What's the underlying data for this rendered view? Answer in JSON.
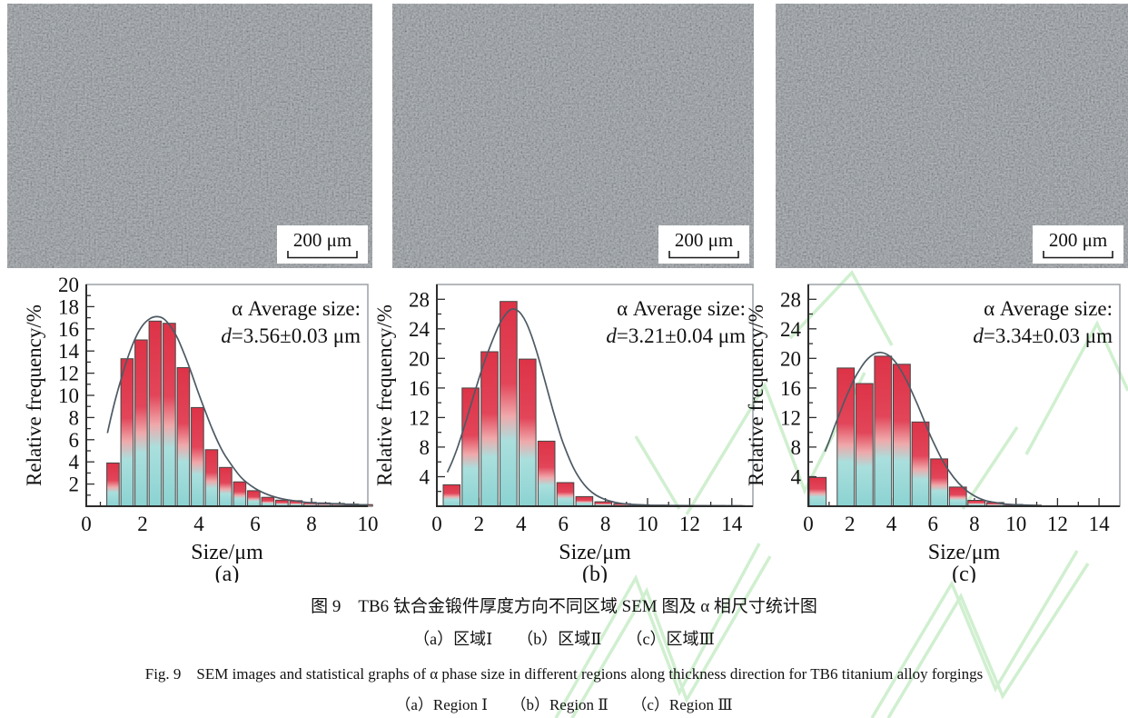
{
  "figure": {
    "sem_panels": [
      {
        "scale_label": "200 μm"
      },
      {
        "scale_label": "200 μm"
      },
      {
        "scale_label": "200 μm"
      }
    ],
    "captions": {
      "zh_title": "图 9　TB6 钛合金锻件厚度方向不同区域 SEM 图及 α 相尺寸统计图",
      "zh_sub": "（a）区域Ⅰ　　（b）区域Ⅱ　　（c）区域Ⅲ",
      "en_title": "Fig. 9　SEM images and statistical graphs of α phase size in different regions along thickness direction for TB6 titanium alloy forgings",
      "en_sub": "（a）Region Ⅰ　　（b）Region Ⅱ　　（c）Region Ⅲ"
    }
  },
  "colors": {
    "axis": "#2d2d2d",
    "frame": "#9aa0a5",
    "curve": "#4d5a64",
    "bar_stroke": "#454545",
    "watermark": "#c8edc8",
    "sem_base": "#8c9399",
    "bar_stops": [
      [
        "0%",
        "#dd3347"
      ],
      [
        "40%",
        "#e24559"
      ],
      [
        "56%",
        "#efa9ab"
      ],
      [
        "68%",
        "#aadfdd"
      ],
      [
        "100%",
        "#8bd3d2"
      ]
    ]
  },
  "chart_data": [
    {
      "type": "bar",
      "panel_label": "(a)",
      "xlabel": "Size/μm",
      "ylabel": "Relative frequency/%",
      "xlim": [
        0,
        10
      ],
      "ylim": [
        0,
        20
      ],
      "x_ticks": [
        0,
        2,
        4,
        6,
        8,
        10
      ],
      "x_minor_step": 0.5,
      "y_ticks": [
        2,
        4,
        6,
        8,
        10,
        12,
        14,
        16,
        18,
        20
      ],
      "y_minor_step": 1,
      "bar_width": 0.44,
      "bar_centers": [
        0.95,
        1.45,
        1.95,
        2.45,
        2.95,
        3.45,
        3.95,
        4.45,
        4.95,
        5.45,
        5.95,
        6.45,
        6.95,
        7.45,
        7.95,
        8.45,
        8.95,
        9.45,
        9.95
      ],
      "values": [
        3.9,
        13.3,
        15.0,
        16.7,
        16.5,
        12.5,
        8.9,
        5.1,
        3.5,
        2.2,
        1.4,
        0.8,
        0.55,
        0.5,
        0.35,
        0.3,
        0.25,
        0.2,
        0.15
      ],
      "annotation": {
        "line1": "α Average size:",
        "var": "d",
        "value": "=3.56±0.03 μm"
      },
      "curve": [
        [
          0.75,
          6.6
        ],
        [
          1.0,
          9.3
        ],
        [
          1.25,
          11.6
        ],
        [
          1.5,
          13.6
        ],
        [
          1.75,
          15.2
        ],
        [
          2.0,
          16.3
        ],
        [
          2.25,
          16.9
        ],
        [
          2.5,
          17.1
        ],
        [
          2.75,
          16.9
        ],
        [
          3.0,
          16.2
        ],
        [
          3.25,
          15.1
        ],
        [
          3.5,
          13.6
        ],
        [
          3.75,
          11.9
        ],
        [
          4.0,
          10.1
        ],
        [
          4.25,
          8.4
        ],
        [
          4.5,
          6.8
        ],
        [
          4.75,
          5.4
        ],
        [
          5.0,
          4.3
        ],
        [
          5.5,
          2.6
        ],
        [
          6.0,
          1.6
        ],
        [
          6.5,
          1.0
        ],
        [
          7.0,
          0.65
        ],
        [
          7.5,
          0.45
        ],
        [
          8.0,
          0.3
        ],
        [
          8.5,
          0.25
        ],
        [
          9.0,
          0.2
        ],
        [
          9.5,
          0.15
        ],
        [
          10.0,
          0.12
        ]
      ]
    },
    {
      "type": "bar",
      "panel_label": "(b)",
      "xlabel": "Size/μm",
      "ylabel": "Relative frequency/%",
      "xlim": [
        0,
        15
      ],
      "ylim": [
        0,
        30
      ],
      "x_ticks": [
        0,
        2,
        4,
        6,
        8,
        10,
        12,
        14
      ],
      "x_minor_step": 1,
      "y_ticks": [
        4,
        8,
        12,
        16,
        20,
        24,
        28
      ],
      "y_minor_step": 2,
      "bar_width": 0.8,
      "bar_centers": [
        0.7,
        1.6,
        2.5,
        3.4,
        4.3,
        5.2,
        6.1,
        7.0,
        7.9,
        8.8,
        9.7,
        10.6,
        11.5,
        12.4,
        13.3,
        14.2
      ],
      "values": [
        2.9,
        16.0,
        20.9,
        27.7,
        19.9,
        8.8,
        3.2,
        1.3,
        0.6,
        0.35,
        0.2,
        0.15,
        0.12,
        0.1,
        0.1,
        0.08
      ],
      "annotation": {
        "line1": "α Average size:",
        "var": "d",
        "value": "=3.21±0.04 μm"
      },
      "curve": [
        [
          0.5,
          4.6
        ],
        [
          0.75,
          6.2
        ],
        [
          1.0,
          8.1
        ],
        [
          1.25,
          10.3
        ],
        [
          1.5,
          12.6
        ],
        [
          1.75,
          15.0
        ],
        [
          2.0,
          17.3
        ],
        [
          2.25,
          19.5
        ],
        [
          2.5,
          21.4
        ],
        [
          2.75,
          23.2
        ],
        [
          3.0,
          24.8
        ],
        [
          3.25,
          25.9
        ],
        [
          3.5,
          26.6
        ],
        [
          3.75,
          26.6
        ],
        [
          4.0,
          26.0
        ],
        [
          4.25,
          24.8
        ],
        [
          4.5,
          23.0
        ],
        [
          4.75,
          20.8
        ],
        [
          5.0,
          18.3
        ],
        [
          5.25,
          15.7
        ],
        [
          5.5,
          13.1
        ],
        [
          5.75,
          10.7
        ],
        [
          6.0,
          8.5
        ],
        [
          6.5,
          5.1
        ],
        [
          7.0,
          2.9
        ],
        [
          7.5,
          1.6
        ],
        [
          8.0,
          0.9
        ],
        [
          8.5,
          0.5
        ],
        [
          9.0,
          0.3
        ],
        [
          10.0,
          0.15
        ],
        [
          11.0,
          0.1
        ],
        [
          12.0,
          0.08
        ],
        [
          14.5,
          0.05
        ]
      ]
    },
    {
      "type": "bar",
      "panel_label": "(c)",
      "xlabel": "Size/μm",
      "ylabel": "Relative frequency/%",
      "xlim": [
        0,
        15
      ],
      "ylim": [
        0,
        30
      ],
      "x_ticks": [
        0,
        2,
        4,
        6,
        8,
        10,
        12,
        14
      ],
      "x_minor_step": 1,
      "y_ticks": [
        4,
        8,
        12,
        16,
        20,
        24,
        28
      ],
      "y_minor_step": 2,
      "bar_width": 0.82,
      "bar_centers": [
        0.45,
        1.8,
        2.7,
        3.6,
        4.5,
        5.4,
        6.3,
        7.2,
        8.1,
        9.0,
        9.9,
        10.8
      ],
      "values": [
        3.9,
        18.7,
        16.6,
        20.3,
        19.2,
        11.4,
        6.4,
        2.6,
        0.8,
        0.5,
        0.25,
        0.15
      ],
      "annotation": {
        "line1": "α Average size:",
        "var": "d",
        "value": "=3.34±0.03 μm"
      },
      "curve": [
        [
          0.8,
          7.4
        ],
        [
          1.0,
          8.8
        ],
        [
          1.25,
          10.7
        ],
        [
          1.5,
          12.5
        ],
        [
          1.75,
          14.3
        ],
        [
          2.0,
          15.9
        ],
        [
          2.25,
          17.4
        ],
        [
          2.5,
          18.6
        ],
        [
          2.75,
          19.6
        ],
        [
          3.0,
          20.3
        ],
        [
          3.25,
          20.7
        ],
        [
          3.5,
          20.8
        ],
        [
          3.75,
          20.6
        ],
        [
          4.0,
          20.1
        ],
        [
          4.25,
          19.3
        ],
        [
          4.5,
          18.2
        ],
        [
          4.75,
          16.9
        ],
        [
          5.0,
          15.4
        ],
        [
          5.25,
          13.8
        ],
        [
          5.5,
          12.1
        ],
        [
          5.75,
          10.4
        ],
        [
          6.0,
          8.8
        ],
        [
          6.5,
          6.0
        ],
        [
          7.0,
          3.9
        ],
        [
          7.5,
          2.4
        ],
        [
          8.0,
          1.4
        ],
        [
          8.5,
          0.8
        ],
        [
          9.0,
          0.5
        ],
        [
          9.5,
          0.3
        ],
        [
          10.0,
          0.2
        ],
        [
          11.0,
          0.1
        ]
      ]
    }
  ]
}
